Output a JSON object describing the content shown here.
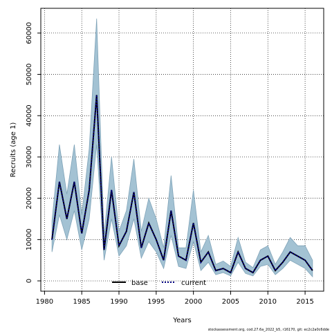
{
  "chart_data": {
    "type": "line",
    "xlabel": "Years",
    "ylabel": "Recruits (age 1)",
    "xlim": [
      1979.5,
      2017.5
    ],
    "ylim": [
      -2500,
      66000
    ],
    "x_ticks": [
      1980,
      1985,
      1990,
      1995,
      2000,
      2005,
      2010,
      2015
    ],
    "y_ticks": [
      0,
      10000,
      20000,
      30000,
      40000,
      50000,
      60000
    ],
    "grid": true,
    "legend_position": "bottom-center",
    "footer": "stockassessment.org, cod.27.6a_2022_b5, r16170, git: ec2c2a0c6dde",
    "band_color": "#a3c2d3",
    "band_edge_color": "#7fa3b8",
    "series": [
      {
        "name": "base",
        "style": "solid",
        "color": "#000000",
        "x": [
          1981,
          1982,
          1983,
          1984,
          1985,
          1986,
          1987,
          1988,
          1989,
          1990,
          1991,
          1992,
          1993,
          1994,
          1995,
          1996,
          1997,
          1998,
          1999,
          2000,
          2001,
          2002,
          2003,
          2004,
          2005,
          2006,
          2007,
          2008,
          2009,
          2010,
          2011,
          2012,
          2013,
          2014,
          2015,
          2016
        ],
        "y": [
          10000,
          24000,
          15000,
          24000,
          11500,
          22000,
          45000,
          7500,
          22000,
          8500,
          12000,
          21500,
          8000,
          14000,
          10000,
          5000,
          17000,
          6000,
          5000,
          14000,
          4500,
          7000,
          2500,
          3000,
          2000,
          7000,
          3000,
          2000,
          5000,
          6000,
          2500,
          4500,
          7000,
          6000,
          5000,
          2500
        ]
      },
      {
        "name": "current",
        "style": "dotted",
        "color": "#000080",
        "x": [
          1981,
          1982,
          1983,
          1984,
          1985,
          1986,
          1987,
          1988,
          1989,
          1990,
          1991,
          1992,
          1993,
          1994,
          1995,
          1996,
          1997,
          1998,
          1999,
          2000,
          2001,
          2002,
          2003,
          2004,
          2005,
          2006,
          2007,
          2008,
          2009,
          2010,
          2011,
          2012,
          2013,
          2014,
          2015,
          2016
        ],
        "y": [
          10000,
          24000,
          15000,
          24000,
          11500,
          22000,
          45000,
          7500,
          22000,
          8500,
          12000,
          21500,
          8000,
          14000,
          10000,
          5000,
          17000,
          6000,
          5000,
          14000,
          4500,
          7000,
          2500,
          3000,
          2000,
          7000,
          3000,
          2000,
          5000,
          6000,
          2500,
          4500,
          7000,
          6000,
          5000,
          2500
        ]
      }
    ],
    "confidence_band": {
      "x": [
        1981,
        1982,
        1983,
        1984,
        1985,
        1986,
        1987,
        1988,
        1989,
        1990,
        1991,
        1992,
        1993,
        1994,
        1995,
        1996,
        1997,
        1998,
        1999,
        2000,
        2001,
        2002,
        2003,
        2004,
        2005,
        2006,
        2007,
        2008,
        2009,
        2010,
        2011,
        2012,
        2013,
        2014,
        2015,
        2016
      ],
      "lower": [
        7000,
        16000,
        10000,
        17000,
        7500,
        15000,
        33000,
        5000,
        15000,
        6000,
        8500,
        15000,
        5500,
        9500,
        7000,
        3000,
        11000,
        3500,
        3000,
        9500,
        2500,
        4500,
        1500,
        2000,
        1200,
        4500,
        1800,
        1200,
        3500,
        4000,
        1500,
        3000,
        5000,
        4000,
        3000,
        1000
      ],
      "upper": [
        14500,
        33000,
        21000,
        33000,
        16000,
        32000,
        63500,
        11000,
        30000,
        12000,
        17000,
        29500,
        12000,
        20000,
        15000,
        8000,
        25500,
        8000,
        8000,
        22000,
        7000,
        11000,
        4000,
        4800,
        3500,
        10500,
        4500,
        3200,
        7500,
        8500,
        4000,
        7000,
        10500,
        8500,
        8500,
        5000
      ]
    }
  }
}
